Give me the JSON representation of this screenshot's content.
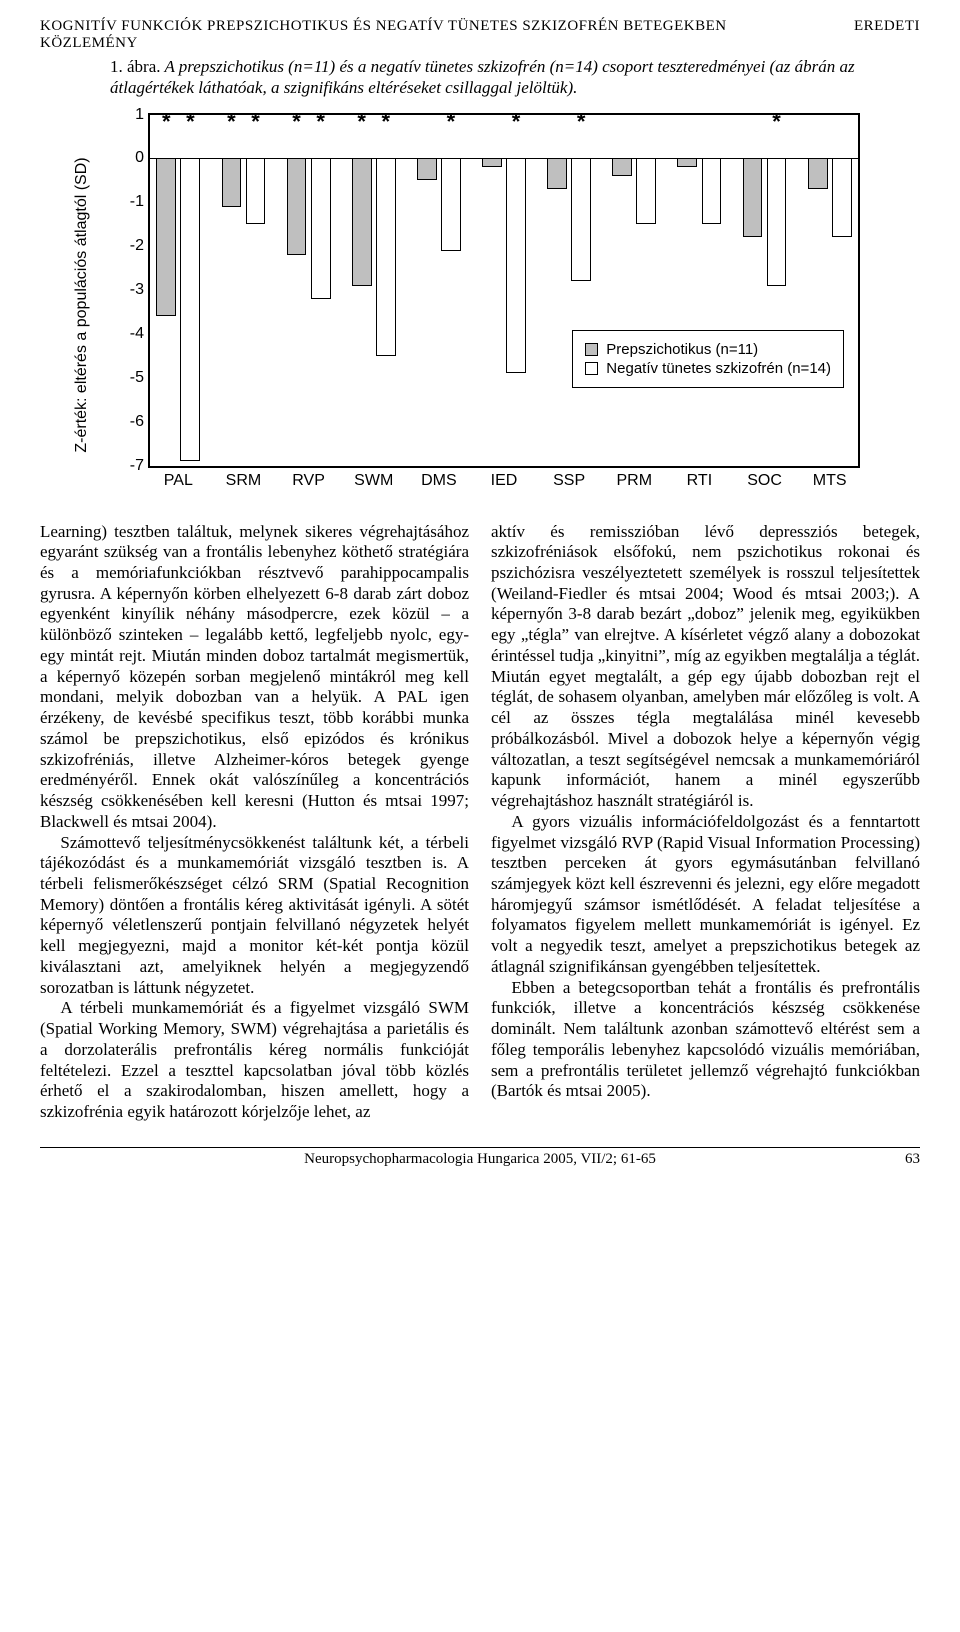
{
  "header": {
    "title_left": "KOGNITÍV FUNKCIÓK PREPSZICHOTIKUS ÉS NEGATÍV TÜNETES SZKIZOFRÉN BETEGEKBEN",
    "title_right": "EREDETI",
    "title_right2": "KÖZLEMÉNY"
  },
  "figure": {
    "caption_num": "1. ábra.",
    "caption_text": "A prepszichotikus (n=11) és a negatív tünetes szkizofrén (n=14) csoport teszteredményei (az ábrán az átlagértékek láthatóak, a szignifikáns eltéréseket csillaggal jelöltük)."
  },
  "chart": {
    "type": "bar",
    "y_label": "Z-érték: eltérés a populációs átlagtól (SD)",
    "ylim": [
      -7,
      1
    ],
    "yticks": [
      1,
      0,
      -1,
      -2,
      -3,
      -4,
      -5,
      -6,
      -7
    ],
    "categories": [
      "PAL",
      "SRM",
      "RVP",
      "SWM",
      "DMS",
      "IED",
      "SSP",
      "PRM",
      "RTI",
      "SOC",
      "MTS"
    ],
    "series": [
      {
        "name": "Prepszichotikus (n=11)",
        "color": "#bfbfbf",
        "values": [
          -3.6,
          -1.1,
          -2.2,
          -2.9,
          -0.5,
          -0.2,
          -0.7,
          -0.4,
          -0.2,
          -1.8,
          -0.7
        ]
      },
      {
        "name": "Negatív tünetes szkizofrén (n=14)",
        "color": "#ffffff",
        "values": [
          -6.9,
          -1.5,
          -3.2,
          -4.5,
          -2.1,
          -4.9,
          -2.8,
          -1.5,
          -1.5,
          -2.9,
          -1.8
        ]
      }
    ],
    "stars_series1": [
      true,
      true,
      true,
      true,
      false,
      false,
      false,
      false,
      false,
      false,
      false
    ],
    "stars_series2": [
      true,
      true,
      true,
      true,
      true,
      true,
      true,
      false,
      false,
      true,
      false
    ],
    "legend": {
      "items": [
        {
          "swatch": "grey",
          "label": "Prepszichotikus (n=11)"
        },
        {
          "swatch": "white",
          "label": "Negatív tünetes szkizofrén (n=14)"
        }
      ]
    },
    "bar_width_pct": 2.8,
    "bar_gap_pct": 0.6,
    "group_gap_pct": 3.0
  },
  "body": {
    "p1": "Learning) tesztben találtuk, melynek sikeres végrehajtásához egyaránt szükség van a frontális lebenyhez köthető stratégiára és a memóriafunkciókban résztvevő parahippocampalis gyrusra. A képernyőn körben elhelyezett 6-8 darab zárt doboz egyenként kinyílik néhány másodpercre, ezek közül – a különböző szinteken – legalább kettő, legfeljebb nyolc, egy-egy mintát rejt. Miután minden doboz tartalmát megismertük, a képernyő közepén sorban megjelenő mintákról meg kell mondani, melyik dobozban van a helyük. A PAL igen érzékeny, de kevésbé specifikus teszt, több korábbi munka számol be prepszichotikus, első epizódos és krónikus szkizofréniás, illetve Alzheimer-kóros betegek gyenge eredményéről. Ennek okát valószínűleg a koncentrációs készség csökkenésében kell keresni (Hutton és mtsai 1997; Blackwell és mtsai 2004).",
    "p2": "Számottevő teljesítménycsökkenést találtunk két, a térbeli tájékozódást és a munkamemóriát vizsgáló tesztben is. A térbeli felismerőkészséget célzó SRM (Spatial Recognition Memory) döntően a frontális kéreg aktivitását igényli. A sötét képernyő véletlenszerű pontjain felvillanó négyzetek helyét kell megjegyezni, majd a monitor két-két pontja közül kiválasztani azt, amelyiknek helyén a megjegyzendő sorozatban is láttunk négyzetet.",
    "p3": "A térbeli munkamemóriát és a figyelmet vizsgáló SWM (Spatial Working Memory, SWM) végrehajtása a parietális és a dorzolaterális prefrontális kéreg normális funkcióját feltételezi. Ezzel a teszttel kapcsolatban jóval több közlés érhető el a szakirodalomban, hiszen amellett, hogy a szkizofrénia egyik határozott kórjelzője lehet, az",
    "p4": "aktív és remisszióban lévő depressziós betegek, szkizofréniások elsőfokú, nem pszichotikus rokonai és pszichózisra veszélyeztetett személyek is rosszul teljesítettek (Weiland-Fiedler és mtsai 2004; Wood és mtsai 2003;). A képernyőn 3-8 darab bezárt „doboz” jelenik meg, egyikükben egy „tégla” van elrejtve. A kísérletet végző alany a dobozokat érintéssel tudja „kinyitni”, míg az egyikben megtalálja a téglát. Miután egyet megtalált, a gép egy újabb dobozban rejt el téglát, de sohasem olyanban, amelyben már előzőleg is volt. A cél az összes tégla megtalálása minél kevesebb próbálkozásból. Mivel a dobozok helye a képernyőn végig változatlan, a teszt segítségével nemcsak a munkamemóriáról kapunk információt, hanem a minél egyszerűbb végrehajtáshoz használt stratégiáról is.",
    "p5": "A gyors vizuális információfeldolgozást és a fenntartott figyelmet vizsgáló RVP (Rapid Visual Information Processing) tesztben perceken át gyors egymásutánban felvillanó számjegyek közt kell észrevenni és jelezni, egy előre megadott háromjegyű számsor ismétlődését. A feladat teljesítése a folyamatos figyelem mellett munkamemóriát is igényel. Ez volt a negyedik teszt, amelyet a prepszichotikus betegek az átlagnál szignifikánsan gyengébben teljesítettek.",
    "p6": "Ebben a betegcsoportban tehát a frontális és prefrontális funkciók, illetve a koncentrációs készség csökkenése dominált. Nem találtunk azonban számottevő eltérést sem a főleg temporális lebenyhez kapcsolódó vizuális memóriában, sem a prefrontális területet jellemző végrehajtó funkciókban (Bartók és mtsai 2005)."
  },
  "footer": {
    "journal": "Neuropsychopharmacologia Hungarica 2005, VII/2; 61-65",
    "page": "63"
  }
}
